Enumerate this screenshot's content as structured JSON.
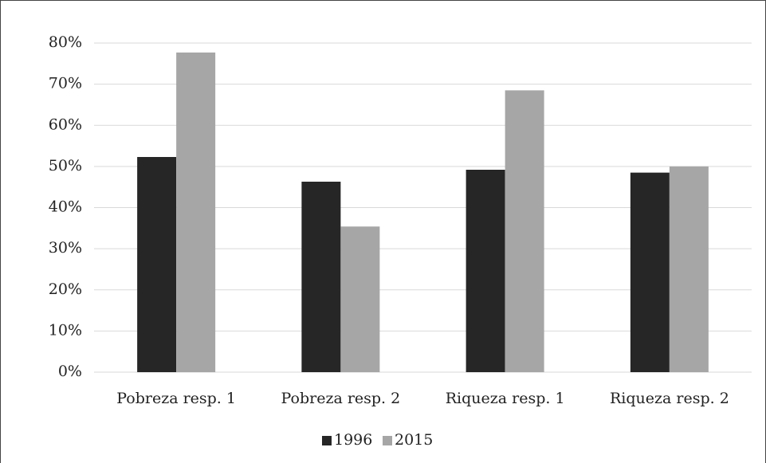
{
  "chart_data": {
    "type": "bar",
    "categories": [
      "Pobreza resp. 1",
      "Pobreza resp. 2",
      "Riqueza resp. 1",
      "Riqueza resp. 2"
    ],
    "series": [
      {
        "name": "1996",
        "color": "#262626",
        "values": [
          52.3,
          46.3,
          49.2,
          48.5
        ]
      },
      {
        "name": "2015",
        "color": "#a6a6a6",
        "values": [
          77.7,
          35.4,
          68.5,
          50.0
        ]
      }
    ],
    "ylim": [
      0,
      80
    ],
    "yticks": [
      {
        "value": 0,
        "label": "0%"
      },
      {
        "value": 10,
        "label": "10%"
      },
      {
        "value": 20,
        "label": "20%"
      },
      {
        "value": 30,
        "label": "30%"
      },
      {
        "value": 40,
        "label": "40%"
      },
      {
        "value": 50,
        "label": "50%"
      },
      {
        "value": 60,
        "label": "60%"
      },
      {
        "value": 70,
        "label": "70%"
      },
      {
        "value": 80,
        "label": "80%"
      }
    ],
    "grid": true,
    "legend": "bottom"
  }
}
